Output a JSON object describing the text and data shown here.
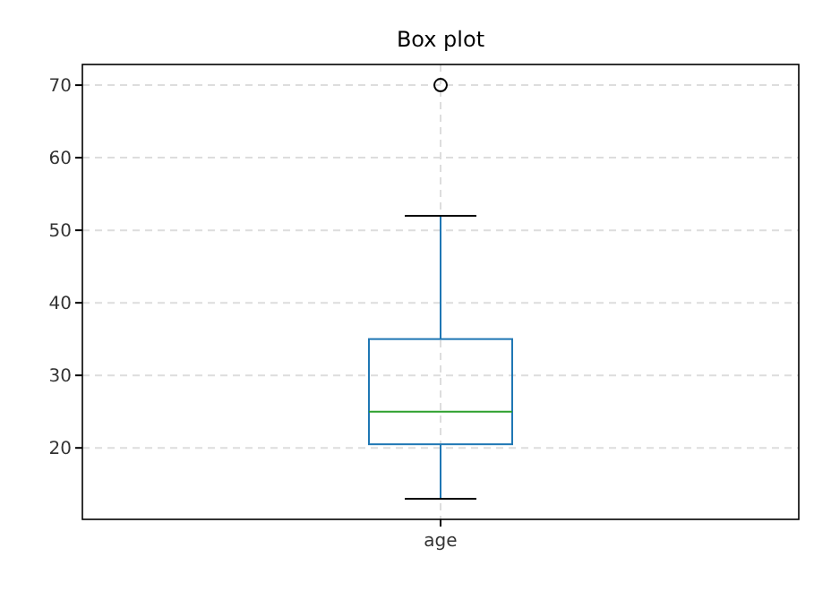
{
  "chart_data": {
    "type": "box",
    "title": "Box plot",
    "categories": [
      "age"
    ],
    "boxes": [
      {
        "low": 13,
        "q1": 20.5,
        "median": 25,
        "q3": 35,
        "high": 52,
        "outliers": [
          70
        ]
      }
    ],
    "color": "#1f77b4",
    "ylim": [
      10.15,
      72.85
    ],
    "yticks": [
      20,
      30,
      40,
      50,
      60,
      70
    ],
    "grid": true
  }
}
